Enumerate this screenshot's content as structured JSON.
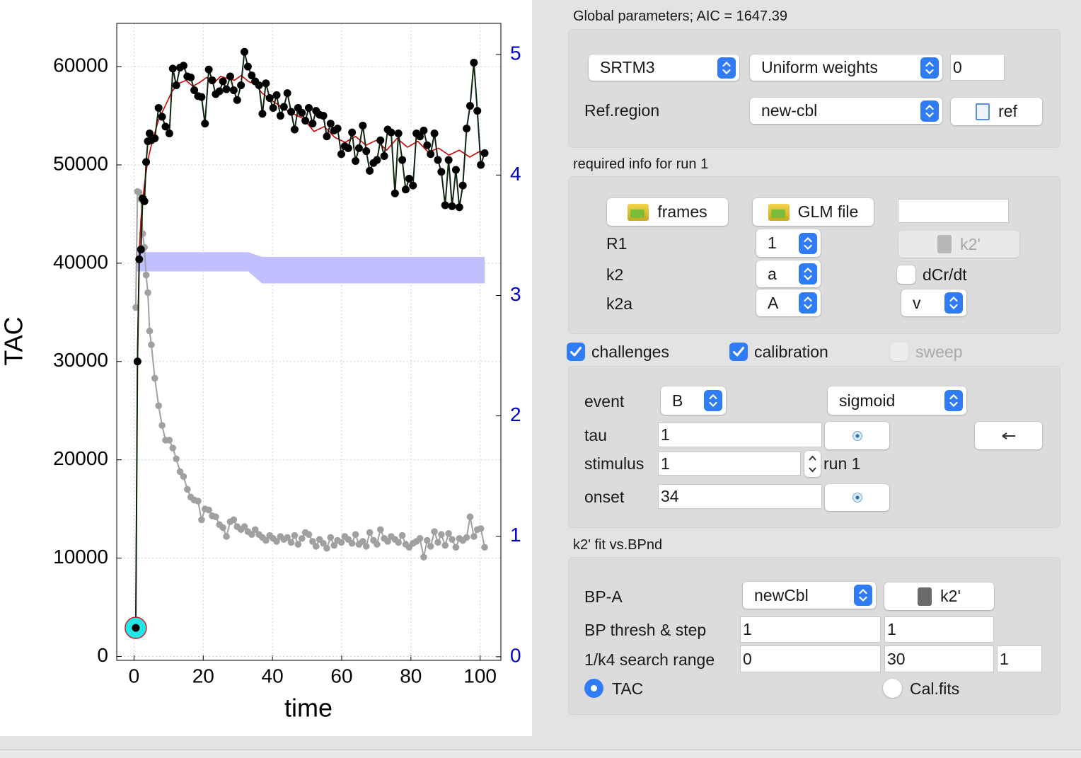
{
  "chart_data": {
    "type": "line",
    "xlabel": "time",
    "ylabel": "TAC",
    "xlim": [
      -5,
      106
    ],
    "ylim": [
      -400,
      64400
    ],
    "y2lim": [
      -0.03,
      5.26
    ],
    "xticks": [
      0,
      20,
      40,
      60,
      80,
      100
    ],
    "yticks": [
      0,
      10000,
      20000,
      30000,
      40000,
      50000,
      60000
    ],
    "y2ticks": [
      0,
      1,
      2,
      3,
      4,
      5
    ],
    "y2_color": "#0000cc",
    "grid": true,
    "x": [
      0.5,
      1,
      1.5,
      2,
      2.5,
      3,
      3.5,
      4,
      4.5,
      5,
      6.0,
      7.1,
      8.1,
      9.1,
      10.2,
      11.2,
      12.2,
      13.3,
      14.3,
      15.4,
      16.4,
      17.4,
      18.5,
      19.5,
      20.5,
      21.6,
      22.6,
      23.6,
      24.7,
      25.7,
      26.7,
      27.8,
      28.8,
      29.8,
      30.9,
      31.9,
      32.9,
      34.0,
      35.0,
      36.1,
      37.1,
      38.1,
      39.2,
      40.2,
      41.2,
      42.3,
      43.3,
      44.3,
      45.4,
      46.4,
      47.4,
      48.5,
      49.5,
      50.5,
      51.6,
      52.6,
      53.6,
      54.7,
      55.7,
      56.8,
      57.8,
      58.8,
      59.9,
      60.9,
      61.9,
      63.0,
      64.0,
      65.0,
      66.1,
      67.1,
      68.1,
      69.2,
      70.2,
      71.2,
      72.3,
      73.3,
      74.3,
      75.4,
      76.4,
      77.5,
      78.5,
      79.5,
      80.6,
      81.6,
      82.6,
      83.7,
      84.7,
      85.7,
      86.8,
      87.8,
      88.8,
      89.9,
      90.9,
      91.9,
      93.0,
      94.0,
      95.0,
      96.1,
      97.1,
      98.2,
      99.2,
      100.2,
      101.3
    ],
    "series": [
      {
        "color": "#c0c0ff",
        "axis": "y2",
        "x": [
          0.5,
          33,
          37,
          101.3
        ],
        "lower": [
          3.2,
          3.2,
          3.1,
          3.1
        ],
        "upper": [
          3.36,
          3.36,
          3.32,
          3.32
        ]
      },
      {
        "color": "#a0a0a0",
        "markers": true,
        "values": [
          35500,
          47300,
          47200,
          46500,
          43000,
          41600,
          38800,
          37000,
          33100,
          31700,
          28300,
          25500,
          23500,
          22000,
          22000,
          21200,
          20100,
          18800,
          18300,
          17000,
          16200,
          15900,
          15800,
          13900,
          15000,
          14900,
          14300,
          14200,
          13400,
          13100,
          12200,
          13700,
          13900,
          13200,
          12900,
          13200,
          12700,
          12400,
          12900,
          12400,
          12100,
          11800,
          12300,
          12000,
          11700,
          12200,
          11900,
          12100,
          11600,
          12300,
          11400,
          12000,
          12600,
          12400,
          11700,
          11200,
          11900,
          11500,
          11000,
          12100,
          11300,
          11800,
          11600,
          12200,
          11900,
          11500,
          12400,
          11400,
          11700,
          11200,
          12600,
          11800,
          11400,
          12900,
          12000,
          11700,
          12200,
          11900,
          11600,
          12300,
          11400,
          11100,
          11500,
          11700,
          12000,
          10100,
          11800,
          11200,
          12700,
          11600,
          12400,
          11300,
          12500,
          11900,
          11100,
          12000,
          11800,
          12100,
          14200,
          12200,
          12900,
          13000,
          11100
        ]
      },
      {
        "color": "#cc0000",
        "markers": false,
        "x": [
          0.5,
          1,
          1.5,
          2,
          3,
          4,
          5,
          7,
          9,
          11,
          13,
          15,
          17,
          19,
          21,
          23,
          25,
          27,
          29,
          31,
          33,
          35,
          37,
          40,
          43,
          46,
          49,
          52,
          55,
          58,
          61,
          64,
          67,
          70,
          73,
          76,
          79,
          82,
          85,
          88,
          91,
          94,
          97,
          100,
          101.3
        ],
        "values": [
          3000,
          31000,
          41000,
          44500,
          48000,
          50500,
          52000,
          54500,
          56000,
          57500,
          58300,
          58600,
          58000,
          58400,
          58900,
          58300,
          59000,
          58800,
          58600,
          59100,
          58500,
          58200,
          57300,
          56500,
          55800,
          55200,
          54700,
          53400,
          53900,
          52800,
          52300,
          52900,
          52000,
          52500,
          51500,
          52700,
          51800,
          52400,
          51300,
          51700,
          51000,
          51500,
          50800,
          51400,
          51200
        ]
      },
      {
        "color": "#000000",
        "line_color": "#0d260d",
        "markers": true,
        "values": [
          2900,
          30000,
          40400,
          41400,
          46600,
          46300,
          50300,
          52400,
          53200,
          52500,
          52700,
          55800,
          54900,
          53900,
          53200,
          59800,
          58100,
          59900,
          60100,
          59000,
          58900,
          57600,
          57000,
          56900,
          54200,
          59700,
          58600,
          57200,
          57500,
          58500,
          57700,
          59000,
          57600,
          56600,
          58100,
          61500,
          60000,
          59100,
          58500,
          58100,
          55200,
          58300,
          56800,
          55800,
          57100,
          55000,
          55900,
          57300,
          55400,
          53600,
          55800,
          55300,
          54500,
          55800,
          54200,
          55500,
          55100,
          55000,
          52900,
          54200,
          53500,
          53700,
          51100,
          51900,
          51700,
          53300,
          50400,
          51700,
          54000,
          51400,
          49400,
          50200,
          50500,
          52500,
          50900,
          53600,
          53300,
          47100,
          53200,
          50500,
          47500,
          48600,
          47900,
          53200,
          52900,
          53500,
          52000,
          51100,
          53200,
          50500,
          49300,
          45900,
          50500,
          45800,
          49500,
          45700,
          47900,
          53700,
          56000,
          60400,
          55500,
          50000,
          51200
        ]
      }
    ],
    "selected": {
      "series": 3,
      "index": 0,
      "color": "#22e5e5"
    }
  },
  "panel": {
    "global": {
      "title": "Global parameters; AIC = 1647.39",
      "model": "SRTM3",
      "weights": "Uniform weights",
      "weight_value": "0",
      "ref_label": "Ref.region",
      "ref_region": "new-cbl",
      "ref_button": "ref"
    },
    "run": {
      "title": "required info for run 1",
      "frames_button": "frames",
      "glm_button": "GLM file",
      "r1_label": "R1",
      "r1": "1",
      "k2_button": "k2'",
      "k2_label": "k2",
      "k2": "a",
      "dcrdt": {
        "label": "dCr/dt",
        "checked": false,
        "enabled": true
      },
      "k2a_label": "k2a",
      "k2a": "A",
      "v": "v"
    },
    "options": [
      {
        "label": "challenges",
        "checked": true,
        "enabled": true
      },
      {
        "label": "calibration",
        "checked": true,
        "enabled": true
      },
      {
        "label": "sweep",
        "checked": false,
        "enabled": false
      }
    ],
    "challenges": {
      "event_label": "event",
      "event": "B",
      "shape": "sigmoid",
      "tau_label": "tau",
      "tau": "1",
      "stimulus_label": "stimulus",
      "stimulus": "1",
      "run": "run 1",
      "onset_label": "onset",
      "onset": "34"
    },
    "fit": {
      "title": "k2' fit vs.BPnd",
      "bp_label": "BP-A",
      "bp_region": "newCbl",
      "k2_button": "k2'",
      "thresh_label": "BP thresh & step",
      "thresh": "1",
      "step": "1",
      "range_label": "1/k4 search range",
      "range_min": "0",
      "range_max": "30",
      "range_step": "1",
      "modes": [
        {
          "label": "TAC",
          "selected": true
        },
        {
          "label": "Cal.fits",
          "selected": false
        }
      ]
    }
  }
}
